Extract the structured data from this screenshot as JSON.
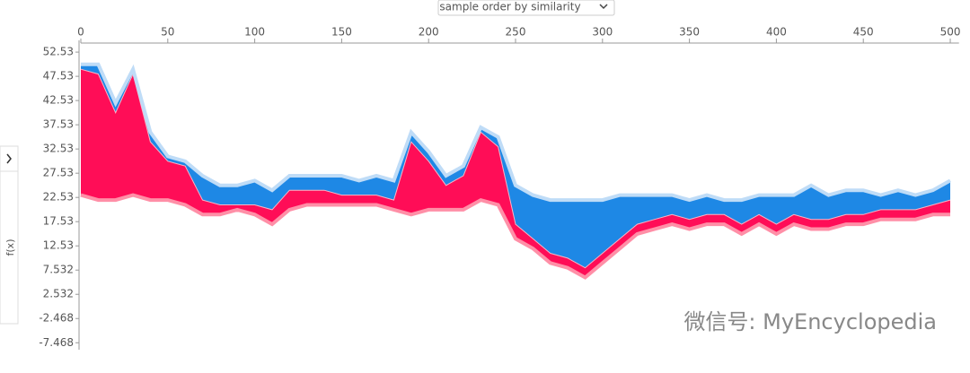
{
  "ui": {
    "dropdown": "sample order by similarity",
    "side_label": "f(x)",
    "watermark": "微信号: MyEncyclopedia"
  },
  "chart_data": {
    "type": "force",
    "x": [
      0,
      10,
      20,
      30,
      40,
      50,
      60,
      70,
      80,
      90,
      100,
      110,
      120,
      130,
      140,
      150,
      160,
      170,
      180,
      190,
      200,
      210,
      220,
      230,
      240,
      250,
      260,
      270,
      280,
      290,
      300,
      310,
      320,
      330,
      340,
      350,
      360,
      370,
      380,
      390,
      400,
      410,
      420,
      430,
      440,
      450,
      460,
      470,
      480,
      490,
      500
    ],
    "series": [
      {
        "color": "#ff8fa7",
        "values": [
          23,
          22,
          22,
          23,
          22,
          22,
          21,
          19,
          19,
          20,
          19,
          17,
          20,
          21,
          21,
          21,
          21,
          21,
          20,
          19,
          20,
          20,
          20,
          22,
          21,
          14,
          12,
          9,
          8,
          6,
          9,
          12,
          15,
          16,
          17,
          16,
          17,
          17,
          15,
          17,
          15,
          17,
          16,
          16,
          17,
          17,
          18,
          18,
          18,
          19,
          19
        ]
      },
      {
        "color": "#ff0d57",
        "values": [
          49,
          48,
          40,
          48,
          34,
          30,
          29,
          22,
          21,
          21,
          21,
          20,
          24,
          24,
          24,
          23,
          23,
          23,
          22,
          34,
          30,
          25,
          27,
          36,
          33,
          17,
          14,
          11,
          10,
          8,
          11,
          14,
          17,
          18,
          19,
          18,
          19,
          19,
          17,
          19,
          17,
          19,
          18,
          18,
          19,
          19,
          20,
          20,
          20,
          21,
          22
        ]
      },
      {
        "color": "#1e88e5",
        "values": [
          50,
          50,
          42,
          49,
          36,
          31,
          30,
          27,
          25,
          25,
          26,
          24,
          27,
          27,
          27,
          27,
          26,
          27,
          26,
          36,
          32,
          27,
          29,
          37,
          35,
          25,
          23,
          22,
          22,
          22,
          22,
          23,
          23,
          23,
          23,
          22,
          23,
          22,
          22,
          23,
          23,
          23,
          25,
          23,
          24,
          24,
          23,
          24,
          23,
          24,
          26
        ]
      }
    ],
    "edge_color": "#bfdcf7",
    "xlim": [
      0,
      505
    ],
    "xticks": [
      0,
      50,
      100,
      150,
      200,
      250,
      300,
      350,
      400,
      450,
      500
    ],
    "ylim": [
      -8.9,
      54.4
    ],
    "yticks": [
      52.53,
      47.53,
      42.53,
      37.53,
      32.53,
      27.53,
      22.53,
      17.53,
      12.53,
      7.532,
      2.532,
      -2.468,
      -7.468
    ]
  }
}
